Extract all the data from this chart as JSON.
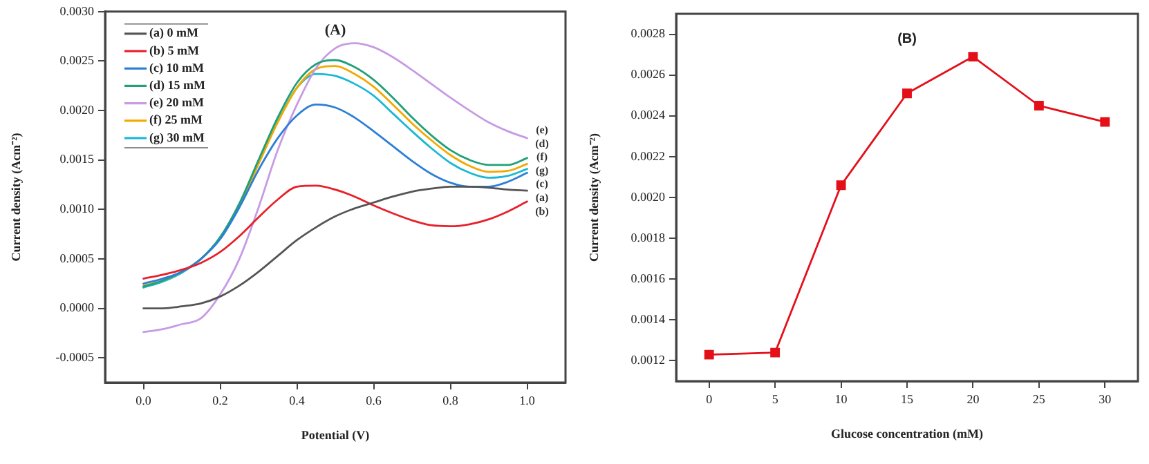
{
  "chart_data": [
    {
      "type": "line",
      "title": "(A)",
      "xlabel": "Potential (V)",
      "ylabel": "Current density (Acm⁻²)",
      "x": [
        0,
        0.05,
        0.1,
        0.15,
        0.2,
        0.25,
        0.3,
        0.35,
        0.4,
        0.45,
        0.5,
        0.55,
        0.6,
        0.65,
        0.7,
        0.75,
        0.8,
        0.85,
        0.9,
        0.95,
        1
      ],
      "series": [
        {
          "name": "(a) 0 mM",
          "color": "#555555",
          "values": [
            0,
            0,
            2e-05,
            5e-05,
            0.00012,
            0.00023,
            0.00037,
            0.00053,
            0.00069,
            0.00082,
            0.00093,
            0.00101,
            0.00107,
            0.00113,
            0.00118,
            0.00121,
            0.00123,
            0.00123,
            0.00122,
            0.0012,
            0.00119
          ]
        },
        {
          "name": "(b) 5 mM",
          "color": "#e8202a",
          "values": [
            0.0003,
            0.00034,
            0.00039,
            0.00046,
            0.00057,
            0.00073,
            0.00092,
            0.0011,
            0.00123,
            0.00124,
            0.0012,
            0.00113,
            0.00104,
            0.00096,
            0.00089,
            0.00084,
            0.00083,
            0.00085,
            0.0009,
            0.00098,
            0.00108
          ]
        },
        {
          "name": "(c) 10 mM",
          "color": "#2c7fd8",
          "values": [
            0.00025,
            0.0003,
            0.00037,
            0.0005,
            0.0007,
            0.00102,
            0.0014,
            0.00172,
            0.00195,
            0.00206,
            0.00203,
            0.00193,
            0.00179,
            0.00164,
            0.00149,
            0.00136,
            0.00127,
            0.00123,
            0.00123,
            0.00128,
            0.00137
          ]
        },
        {
          "name": "(d) 15 mM",
          "color": "#21a07a",
          "values": [
            0.00022,
            0.00028,
            0.00037,
            0.0005,
            0.00072,
            0.00106,
            0.0015,
            0.00193,
            0.00228,
            0.00247,
            0.00251,
            0.00244,
            0.00231,
            0.00213,
            0.00193,
            0.00175,
            0.0016,
            0.0015,
            0.00145,
            0.00145,
            0.00152
          ]
        },
        {
          "name": "(e) 20 mM",
          "color": "#c79be3",
          "values": [
            -0.00024,
            -0.00021,
            -0.00016,
            -0.0001,
            0.00014,
            0.0005,
            0.00102,
            0.0016,
            0.00206,
            0.00243,
            0.00263,
            0.00268,
            0.00264,
            0.00254,
            0.00241,
            0.00227,
            0.00213,
            0.002,
            0.00188,
            0.00179,
            0.00172
          ]
        },
        {
          "name": "(f) 25 mM",
          "color": "#f2a900",
          "values": [
            0.00023,
            0.00028,
            0.00037,
            0.0005,
            0.00071,
            0.00104,
            0.00146,
            0.00188,
            0.00223,
            0.00242,
            0.00245,
            0.00237,
            0.00224,
            0.00206,
            0.00187,
            0.0017,
            0.00155,
            0.00144,
            0.00138,
            0.00139,
            0.00146
          ]
        },
        {
          "name": "(g) 30 mM",
          "color": "#1bb8d6",
          "values": [
            0.00021,
            0.00027,
            0.00036,
            0.0005,
            0.00071,
            0.00105,
            0.00147,
            0.00189,
            0.00223,
            0.00237,
            0.00235,
            0.00227,
            0.00215,
            0.00197,
            0.00179,
            0.00162,
            0.00147,
            0.00137,
            0.00132,
            0.00134,
            0.00141
          ]
        }
      ],
      "xlim": [
        -0.1,
        1.1
      ],
      "ylim": [
        -0.00075,
        0.003
      ],
      "xticks": [
        {
          "value": 0,
          "label": "0.0"
        },
        0.2,
        0.4,
        0.6,
        0.8,
        {
          "value": 1,
          "label": "1.0"
        }
      ],
      "yticks": [
        -0.0005,
        {
          "value": 0,
          "label": "0.0000"
        },
        0.0005,
        {
          "value": 0.001,
          "label": "0.0010"
        },
        0.0015,
        {
          "value": 0.002,
          "label": "0.0020"
        },
        0.0025,
        {
          "value": 0.003,
          "label": "0.0030"
        }
      ],
      "legend": "top left",
      "marker": "none",
      "annotations": [
        "(e)",
        "(d)",
        "(f)",
        "(g)",
        "(c)",
        "(a)",
        "(b)"
      ]
    },
    {
      "type": "line",
      "title": "(B)",
      "xlabel": "Glucose concentration (mM)",
      "ylabel": "Current density (Acm⁻²)",
      "x": [
        0,
        5,
        10,
        15,
        20,
        25,
        30
      ],
      "series": [
        {
          "color": "#e3101a",
          "values": [
            0.00123,
            0.00124,
            0.00206,
            0.00251,
            0.00269,
            0.00245,
            0.00237
          ]
        }
      ],
      "xlim": [
        -2.5,
        32.5
      ],
      "ylim": [
        0.0011,
        0.0029
      ],
      "xticks": [
        0,
        5,
        10,
        15,
        20,
        25,
        30
      ],
      "yticks": [
        0.0012,
        0.0014,
        0.0016,
        0.0018,
        {
          "value": 0.002,
          "label": "0.0020"
        },
        0.0022,
        0.0024,
        0.0026,
        0.0028
      ],
      "marker": "square"
    }
  ]
}
